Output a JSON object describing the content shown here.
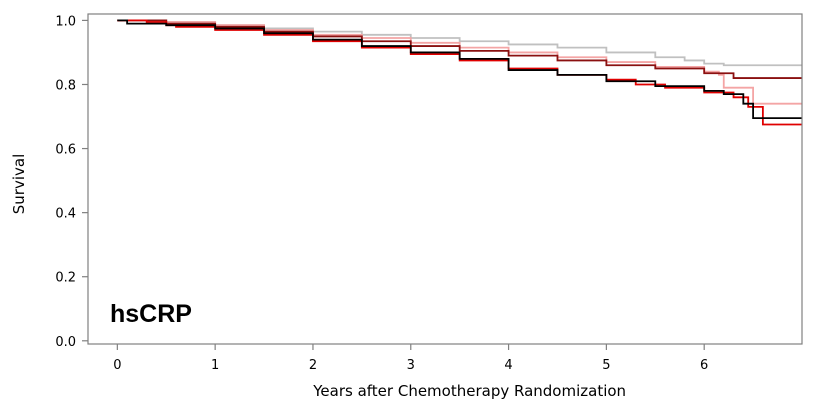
{
  "chart_data": {
    "type": "line",
    "title": "",
    "panel_label": "hsCRP",
    "xlabel": "Years after Chemotherapy Randomization",
    "ylabel": "Survival",
    "xlim": [
      -0.3,
      7.0
    ],
    "ylim": [
      -0.01,
      1.02
    ],
    "xticks": [
      0,
      1,
      2,
      3,
      4,
      5,
      6
    ],
    "yticks": [
      0.0,
      0.2,
      0.4,
      0.6,
      0.8,
      1.0
    ],
    "ytick_labels": [
      "0.0",
      "0.2",
      "0.4",
      "0.6",
      "0.8",
      "1.0"
    ],
    "grid": false,
    "legend": "none",
    "series": [
      {
        "color": "#c0c0c0",
        "x": [
          0,
          0.5,
          1.0,
          1.5,
          2.0,
          2.5,
          3.0,
          3.5,
          4.0,
          4.5,
          5.0,
          5.5,
          5.8,
          6.0,
          6.2,
          7.0
        ],
        "y": [
          1.0,
          0.995,
          0.985,
          0.975,
          0.965,
          0.955,
          0.945,
          0.935,
          0.925,
          0.915,
          0.9,
          0.885,
          0.875,
          0.865,
          0.86,
          0.86
        ]
      },
      {
        "color": "#f4a5a5",
        "x": [
          0,
          0.5,
          1.0,
          1.5,
          2.0,
          2.5,
          3.0,
          3.5,
          4.0,
          4.5,
          5.0,
          5.5,
          6.0,
          6.15,
          6.2,
          6.5,
          7.0
        ],
        "y": [
          1.0,
          0.995,
          0.985,
          0.97,
          0.955,
          0.945,
          0.93,
          0.915,
          0.9,
          0.885,
          0.87,
          0.855,
          0.84,
          0.83,
          0.79,
          0.74,
          0.74
        ]
      },
      {
        "color": "#8b1010",
        "x": [
          0,
          0.5,
          1.0,
          1.5,
          2.0,
          2.5,
          3.0,
          3.5,
          4.0,
          4.5,
          5.0,
          5.5,
          6.0,
          6.3,
          7.0
        ],
        "y": [
          1.0,
          0.99,
          0.98,
          0.965,
          0.95,
          0.935,
          0.92,
          0.905,
          0.89,
          0.875,
          0.86,
          0.85,
          0.835,
          0.82,
          0.82
        ]
      },
      {
        "color": "#e00000",
        "x": [
          0,
          0.3,
          0.5,
          0.6,
          1.0,
          1.5,
          2.0,
          2.5,
          3.0,
          3.5,
          4.0,
          4.5,
          5.0,
          5.3,
          5.6,
          6.0,
          6.3,
          6.45,
          6.6,
          7.0
        ],
        "y": [
          1.0,
          0.995,
          0.985,
          0.98,
          0.97,
          0.955,
          0.935,
          0.915,
          0.895,
          0.875,
          0.85,
          0.83,
          0.815,
          0.8,
          0.79,
          0.775,
          0.76,
          0.73,
          0.675,
          0.675
        ]
      },
      {
        "color": "#000000",
        "x": [
          0,
          0.1,
          0.5,
          1.0,
          1.5,
          2.0,
          2.5,
          3.0,
          3.5,
          4.0,
          4.5,
          5.0,
          5.5,
          6.0,
          6.2,
          6.4,
          6.5,
          7.0
        ],
        "y": [
          1.0,
          0.99,
          0.985,
          0.975,
          0.96,
          0.94,
          0.92,
          0.9,
          0.88,
          0.845,
          0.83,
          0.81,
          0.795,
          0.78,
          0.77,
          0.74,
          0.695,
          0.695
        ]
      }
    ]
  }
}
